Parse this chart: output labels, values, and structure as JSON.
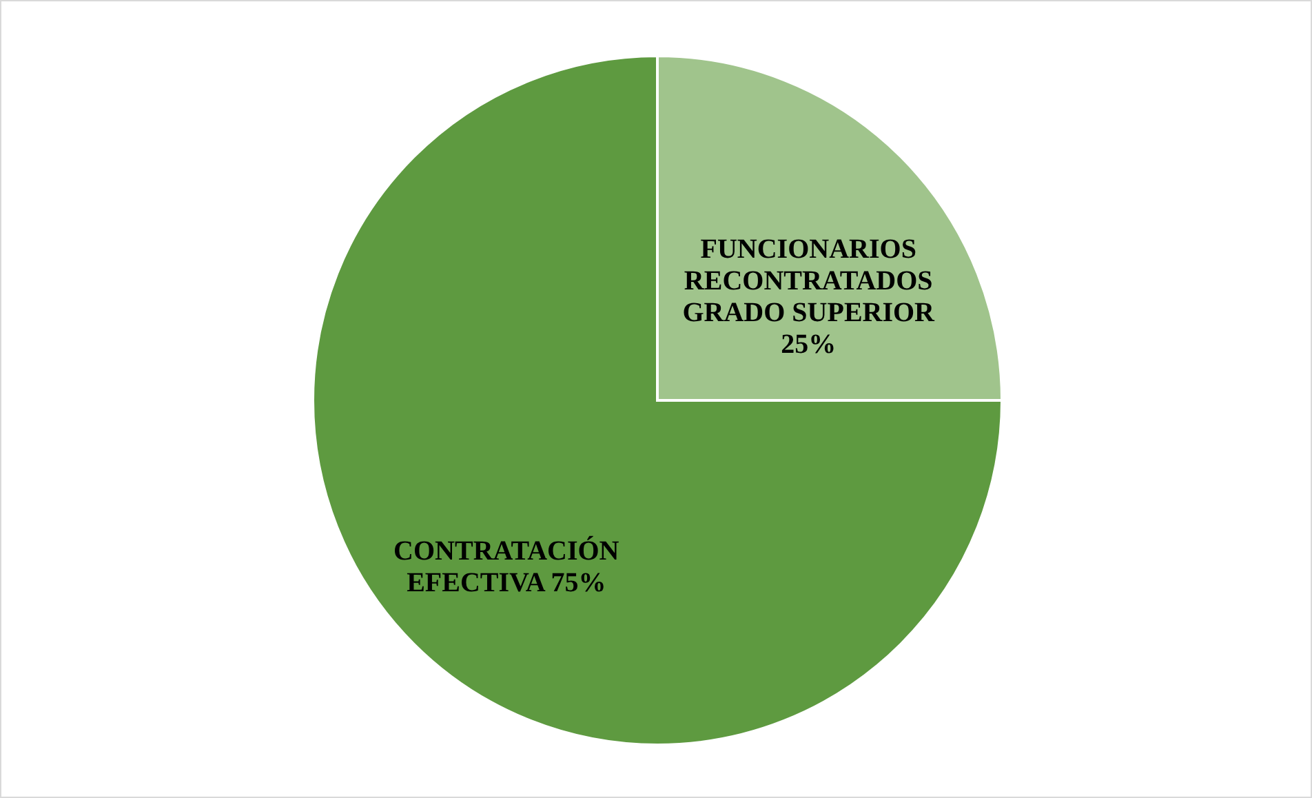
{
  "chart_data": {
    "type": "pie",
    "categories": [
      "FUNCIONARIOS RECONTRATADOS GRADO SUPERIOR",
      "CONTRATACIÓN EFECTIVA"
    ],
    "values": [
      25,
      75
    ],
    "colors": [
      "#a0c48c",
      "#5e9a40"
    ],
    "value_labels": [
      "25%",
      "75%"
    ]
  }
}
